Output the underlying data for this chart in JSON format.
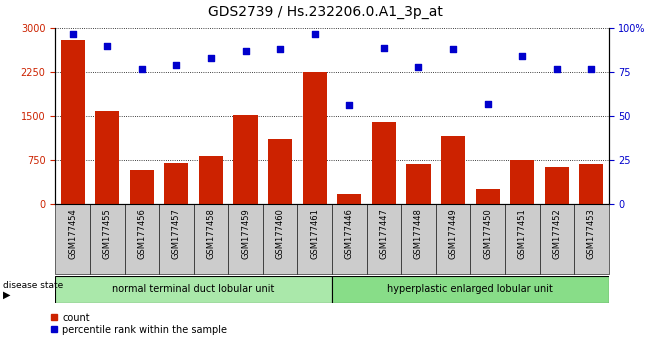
{
  "title": "GDS2739 / Hs.232206.0.A1_3p_at",
  "samples": [
    "GSM177454",
    "GSM177455",
    "GSM177456",
    "GSM177457",
    "GSM177458",
    "GSM177459",
    "GSM177460",
    "GSM177461",
    "GSM177446",
    "GSM177447",
    "GSM177448",
    "GSM177449",
    "GSM177450",
    "GSM177451",
    "GSM177452",
    "GSM177453"
  ],
  "counts": [
    2800,
    1580,
    580,
    700,
    820,
    1520,
    1100,
    2250,
    160,
    1400,
    680,
    1150,
    250,
    750,
    620,
    670
  ],
  "percentiles": [
    97,
    90,
    77,
    79,
    83,
    87,
    88,
    97,
    56,
    89,
    78,
    88,
    57,
    84,
    77,
    77
  ],
  "group1_label": "normal terminal duct lobular unit",
  "group2_label": "hyperplastic enlarged lobular unit",
  "group1_count": 8,
  "group2_count": 8,
  "bar_color": "#cc2200",
  "dot_color": "#0000cc",
  "ylim_left": [
    0,
    3000
  ],
  "ylim_right": [
    0,
    100
  ],
  "yticks_left": [
    0,
    750,
    1500,
    2250,
    3000
  ],
  "yticks_right": [
    0,
    25,
    50,
    75,
    100
  ],
  "disease_state_label": "disease state",
  "legend_count_label": "count",
  "legend_pct_label": "percentile rank within the sample",
  "group1_color": "#aae8aa",
  "group2_color": "#88dd88",
  "tick_bg_color": "#cccccc",
  "title_fontsize": 10,
  "tick_fontsize": 7,
  "label_fontsize": 6,
  "group_fontsize": 7,
  "legend_fontsize": 7
}
